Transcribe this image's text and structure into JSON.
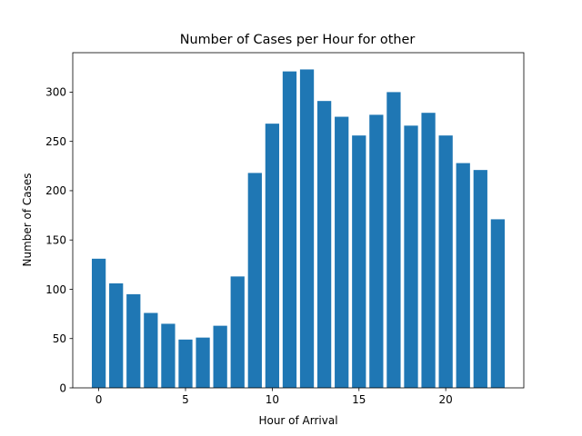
{
  "chart_data": {
    "type": "bar",
    "title": "Number of Cases per Hour for other",
    "xlabel": "Hour of Arrival",
    "ylabel": "Number of Cases",
    "categories": [
      0,
      1,
      2,
      3,
      4,
      5,
      6,
      7,
      8,
      9,
      10,
      11,
      12,
      13,
      14,
      15,
      16,
      17,
      18,
      19,
      20,
      21,
      22,
      23
    ],
    "values": [
      131,
      106,
      95,
      76,
      65,
      49,
      51,
      63,
      113,
      218,
      268,
      321,
      323,
      291,
      275,
      256,
      277,
      300,
      266,
      279,
      256,
      228,
      221,
      171
    ],
    "xlim": [
      -1.5,
      24.5
    ],
    "ylim": [
      0,
      340
    ],
    "xticks": [
      0,
      5,
      10,
      15,
      20
    ],
    "yticks": [
      0,
      50,
      100,
      150,
      200,
      250,
      300
    ],
    "bar_color": "#1f77b4",
    "grid": false
  }
}
